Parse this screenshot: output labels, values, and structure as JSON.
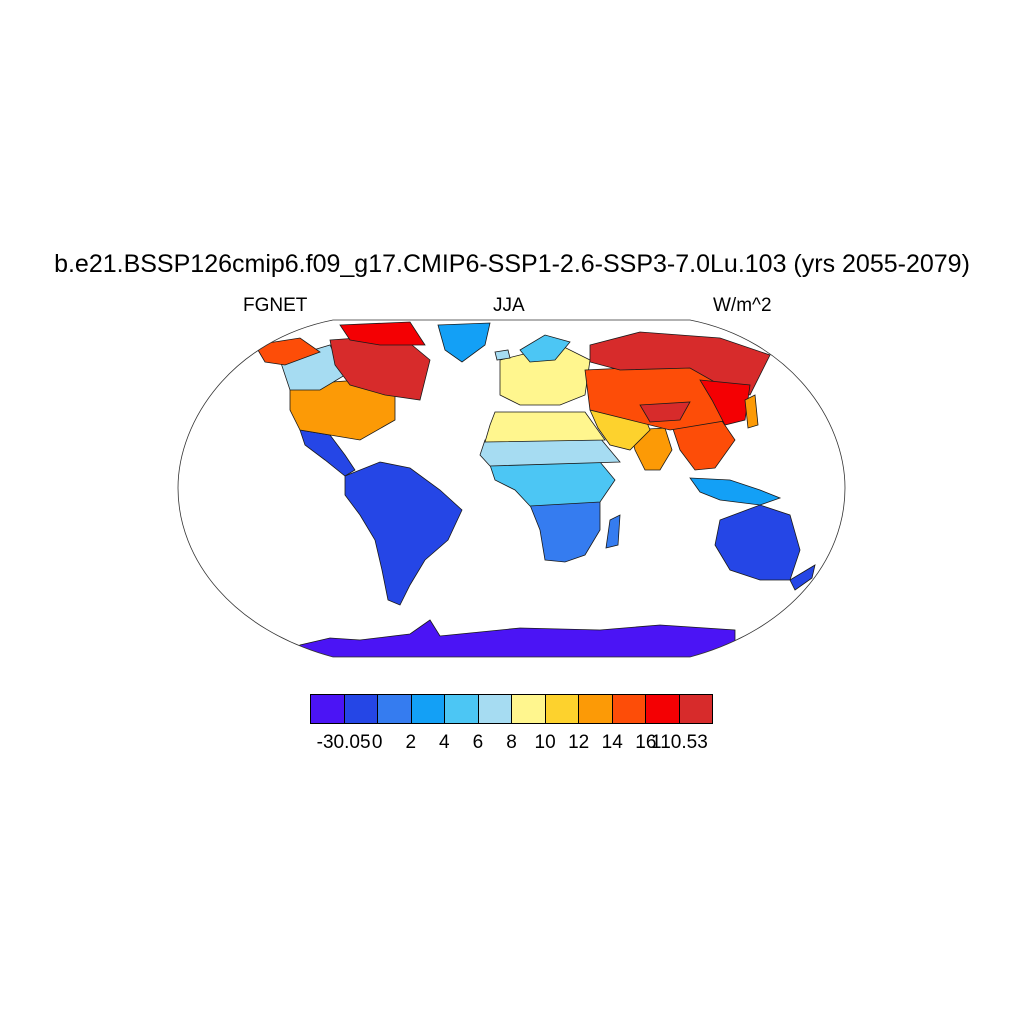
{
  "title": "b.e21.BSSP126cmip6.f09_g17.CMIP6-SSP1-2.6-SSP3-7.0Lu.103 (yrs 2055-2079)",
  "subtitle_left": "FGNET",
  "subtitle_center": "JJA",
  "subtitle_right": "W/m^2",
  "colorbar": {
    "colors": [
      "#4b14f5",
      "#2546e6",
      "#357cf0",
      "#13a0f6",
      "#4cc6f4",
      "#a6dcf2",
      "#fff68e",
      "#fdd22d",
      "#fc9a06",
      "#fd4d08",
      "#f40003",
      "#d72b2b"
    ],
    "labels": [
      "-30.05",
      "0",
      "2",
      "4",
      "6",
      "8",
      "10",
      "12",
      "14",
      "16",
      "110.53"
    ]
  },
  "map": {
    "projection": "Robinson",
    "variable": "FGNET",
    "season": "JJA",
    "units": "W/m^2",
    "regions": [
      {
        "name": "Antarctica",
        "level": 1
      },
      {
        "name": "South America",
        "level": 1
      },
      {
        "name": "Southern Africa",
        "level": 0
      },
      {
        "name": "Australia",
        "level": 0
      },
      {
        "name": "Central Africa",
        "level": 2
      },
      {
        "name": "Sahel",
        "level": 4
      },
      {
        "name": "Sahara",
        "level": 5
      },
      {
        "name": "Greenland",
        "level": 3
      },
      {
        "name": "North America",
        "level": 8
      },
      {
        "name": "Canada",
        "level": 10
      },
      {
        "name": "Europe",
        "level": 6
      },
      {
        "name": "Central Asia",
        "level": 8
      },
      {
        "name": "Siberia",
        "level": 11
      },
      {
        "name": "India",
        "level": 7
      }
    ]
  }
}
